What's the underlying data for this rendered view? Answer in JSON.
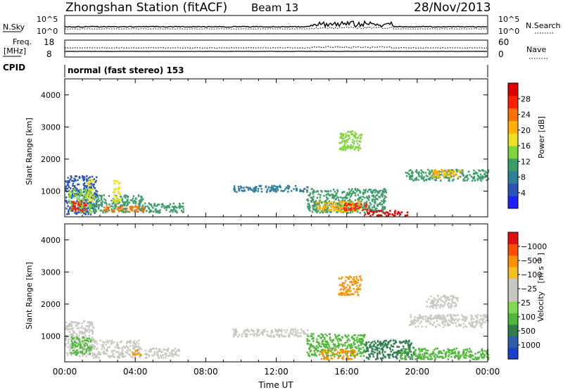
{
  "header": {
    "station": "Zhongshan Station (fitACF)",
    "beam": "Beam 13",
    "date": "28/Nov/2013"
  },
  "info_panels": {
    "nsky": {
      "label": "N.Sky",
      "ticks": [
        "10^5",
        "10^0"
      ]
    },
    "nsearch": {
      "label": "N.Search",
      "ticks": [
        "10^5",
        "10^0"
      ]
    },
    "freq": {
      "label_line1": "Freq.",
      "label_line2": "[MHz]",
      "ticks": [
        "18",
        "8"
      ]
    },
    "nave": {
      "label": "Nave",
      "ticks": [
        "60",
        "0"
      ]
    },
    "cpid": {
      "label": "CPID",
      "value": "normal (fast stereo) 153"
    }
  },
  "chart_data": [
    {
      "type": "heatmap",
      "title": "",
      "xlabel": "Time UT",
      "ylabel": "Slant Range [km]",
      "x_ticks": [
        "00:00",
        "04:00",
        "08:00",
        "12:00",
        "16:00",
        "20:00",
        "00:00"
      ],
      "y_ticks": [
        1000,
        2000,
        3000,
        4000
      ],
      "xlim_hours": [
        0,
        24
      ],
      "ylim_km": [
        200,
        4500
      ],
      "colorbar": {
        "label": "Power [dB]",
        "ticks": [
          "4",
          "8",
          "12",
          "16",
          "20",
          "24",
          "28"
        ],
        "colors": [
          "#1f1fff",
          "#2a55b8",
          "#2f7f9a",
          "#3c9c6a",
          "#7fd63a",
          "#f0e020",
          "#ffb000",
          "#ff7000",
          "#ff2000",
          "#e00000"
        ]
      },
      "regions": [
        {
          "t0": 0.0,
          "t1": 1.8,
          "r0": 300,
          "r1": 1500,
          "level": 1
        },
        {
          "t0": 0.2,
          "t1": 1.5,
          "r0": 350,
          "r1": 1100,
          "level": 4
        },
        {
          "t0": 0.3,
          "t1": 1.2,
          "r0": 380,
          "r1": 700,
          "level": 8
        },
        {
          "t0": 1.5,
          "t1": 4.5,
          "r0": 350,
          "r1": 900,
          "level": 3
        },
        {
          "t0": 2.0,
          "t1": 4.5,
          "r0": 380,
          "r1": 550,
          "level": 7
        },
        {
          "t0": 4.5,
          "t1": 6.7,
          "r0": 330,
          "r1": 650,
          "level": 3
        },
        {
          "t0": 1.2,
          "t1": 1.6,
          "r0": 700,
          "r1": 1400,
          "level": 5
        },
        {
          "t0": 2.7,
          "t1": 3.1,
          "r0": 650,
          "r1": 1350,
          "level": 5
        },
        {
          "t0": 9.5,
          "t1": 13.8,
          "r0": 1000,
          "r1": 1200,
          "level": 2
        },
        {
          "t0": 13.7,
          "t1": 18.2,
          "r0": 350,
          "r1": 1100,
          "level": 3
        },
        {
          "t0": 14.2,
          "t1": 16.8,
          "r0": 380,
          "r1": 700,
          "level": 6
        },
        {
          "t0": 15.8,
          "t1": 17.2,
          "r0": 420,
          "r1": 650,
          "level": 8
        },
        {
          "t0": 15.5,
          "t1": 16.8,
          "r0": 2300,
          "r1": 2900,
          "level": 4
        },
        {
          "t0": 17.0,
          "t1": 19.5,
          "r0": 250,
          "r1": 420,
          "level": 9
        },
        {
          "t0": 19.3,
          "t1": 24.0,
          "r0": 1350,
          "r1": 1700,
          "level": 3
        },
        {
          "t0": 20.8,
          "t1": 22.5,
          "r0": 1450,
          "r1": 1700,
          "level": 6
        }
      ]
    },
    {
      "type": "heatmap",
      "title": "",
      "xlabel": "Time UT",
      "ylabel": "Slant Range [km]",
      "x_ticks": [
        "00:00",
        "04:00",
        "08:00",
        "12:00",
        "16:00",
        "20:00",
        "00:00"
      ],
      "y_ticks": [
        1000,
        2000,
        3000,
        4000
      ],
      "xlim_hours": [
        0,
        24
      ],
      "ylim_km": [
        200,
        4500
      ],
      "colorbar": {
        "label": "Velocity",
        "unit": "[m s",
        "unit_exp": "-1",
        "unit_end": "]",
        "ticks": [
          "1000",
          "500",
          "100",
          "25",
          "−25",
          "−100",
          "−500",
          "−1000"
        ],
        "colors": [
          "#1a3fd0",
          "#2c5fa8",
          "#2e7d4c",
          "#4fb83a",
          "#7ed850",
          "#c8c8c0",
          "#c8c8c0",
          "#f0c020",
          "#ff9000",
          "#ff5000",
          "#e01010"
        ]
      },
      "regions": [
        {
          "t0": 0.0,
          "t1": 1.6,
          "r0": 400,
          "r1": 1500,
          "level": 5
        },
        {
          "t0": 0.3,
          "t1": 1.5,
          "r0": 450,
          "r1": 1000,
          "level": 3
        },
        {
          "t0": 1.5,
          "t1": 4.3,
          "r0": 350,
          "r1": 900,
          "level": 5
        },
        {
          "t0": 3.8,
          "t1": 4.3,
          "r0": 400,
          "r1": 600,
          "level": 8
        },
        {
          "t0": 4.5,
          "t1": 6.5,
          "r0": 350,
          "r1": 650,
          "level": 5
        },
        {
          "t0": 9.5,
          "t1": 13.8,
          "r0": 1000,
          "r1": 1250,
          "level": 5
        },
        {
          "t0": 13.7,
          "t1": 17.0,
          "r0": 400,
          "r1": 1100,
          "level": 3
        },
        {
          "t0": 14.5,
          "t1": 16.5,
          "r0": 300,
          "r1": 600,
          "level": 8
        },
        {
          "t0": 15.5,
          "t1": 16.8,
          "r0": 2300,
          "r1": 2900,
          "level": 8
        },
        {
          "t0": 17.0,
          "t1": 19.8,
          "r0": 300,
          "r1": 900,
          "level": 2
        },
        {
          "t0": 19.5,
          "t1": 24.0,
          "r0": 1300,
          "r1": 1700,
          "level": 5
        },
        {
          "t0": 20.5,
          "t1": 22.3,
          "r0": 1900,
          "r1": 2300,
          "level": 5
        },
        {
          "t0": 19.0,
          "t1": 24.0,
          "r0": 300,
          "r1": 650,
          "level": 3
        }
      ]
    }
  ]
}
